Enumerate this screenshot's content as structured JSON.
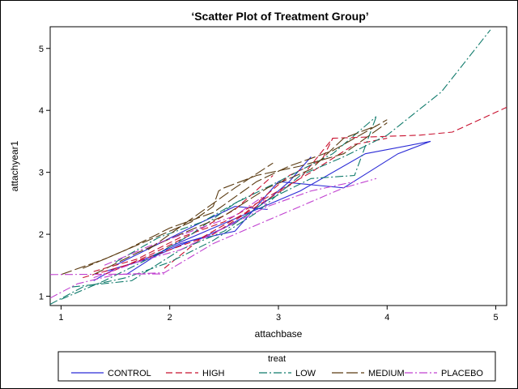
{
  "chart_data": {
    "type": "line",
    "title": "‘Scatter Plot of Treatment Group’",
    "xlabel": "attachbase",
    "ylabel": "attachyear1",
    "xlim": [
      0.9,
      5.1
    ],
    "ylim": [
      0.85,
      5.35
    ],
    "x_ticks": [
      1,
      2,
      3,
      4,
      5
    ],
    "y_ticks": [
      1,
      2,
      3,
      4,
      5
    ],
    "grid": false,
    "legend": {
      "title": "treat",
      "placement": "bottom"
    },
    "series": [
      {
        "name": "CONTROL",
        "color": "#2b2bd6",
        "dash": "solid",
        "points": [
          [
            1.3,
            1.25
          ],
          [
            1.5,
            1.45
          ],
          [
            1.7,
            1.55
          ],
          [
            1.9,
            1.7
          ],
          [
            2.1,
            1.85
          ],
          [
            2.3,
            1.95
          ],
          [
            2.5,
            2.1
          ],
          [
            2.7,
            2.3
          ],
          [
            2.9,
            2.55
          ],
          [
            3.1,
            2.85
          ],
          [
            3.3,
            3.25
          ]
        ],
        "extra": [
          [
            [
              1.4,
              1.4
            ],
            [
              1.8,
              1.6
            ],
            [
              2.2,
              1.9
            ],
            [
              2.6,
              2.05
            ],
            [
              3.0,
              2.85
            ],
            [
              3.6,
              2.75
            ],
            [
              4.1,
              3.3
            ],
            [
              4.4,
              3.5
            ]
          ],
          [
            [
              1.6,
              1.35
            ],
            [
              2.0,
              1.8
            ],
            [
              2.4,
              2.1
            ],
            [
              2.8,
              2.4
            ],
            [
              3.2,
              2.7
            ],
            [
              3.8,
              3.3
            ],
            [
              4.4,
              3.5
            ]
          ],
          [
            [
              1.5,
              1.5
            ],
            [
              1.9,
              1.85
            ],
            [
              2.3,
              2.2
            ],
            [
              2.6,
              2.45
            ],
            [
              2.9,
              2.4
            ]
          ]
        ]
      },
      {
        "name": "HIGH",
        "color": "#c8102e",
        "dash": "8,4",
        "points": [
          [
            1.2,
            1.3
          ],
          [
            1.6,
            1.5
          ],
          [
            2.0,
            1.75
          ],
          [
            2.4,
            2.0
          ],
          [
            2.8,
            2.45
          ],
          [
            3.2,
            2.9
          ],
          [
            3.5,
            3.55
          ],
          [
            4.3,
            3.6
          ],
          [
            4.6,
            3.65
          ],
          [
            5.1,
            4.05
          ]
        ],
        "extra": [
          [
            [
              1.3,
              1.4
            ],
            [
              1.7,
              1.6
            ],
            [
              2.1,
              1.95
            ],
            [
              2.5,
              2.2
            ],
            [
              2.9,
              2.6
            ],
            [
              3.3,
              3.0
            ],
            [
              3.7,
              3.45
            ],
            [
              4.0,
              3.55
            ]
          ],
          [
            [
              1.95,
              1.45
            ],
            [
              2.3,
              1.95
            ],
            [
              2.7,
              2.35
            ],
            [
              3.1,
              2.95
            ],
            [
              3.4,
              3.2
            ],
            [
              3.5,
              3.55
            ]
          ],
          [
            [
              1.4,
              1.35
            ],
            [
              1.8,
              1.65
            ],
            [
              2.2,
              2.0
            ],
            [
              2.6,
              2.4
            ],
            [
              2.95,
              2.95
            ]
          ]
        ]
      },
      {
        "name": "LOW",
        "color": "#0f7a6b",
        "dash": "10,3,2,3",
        "points": [
          [
            0.9,
            0.87
          ],
          [
            1.2,
            1.15
          ],
          [
            1.6,
            1.3
          ],
          [
            2.0,
            1.55
          ],
          [
            2.4,
            1.9
          ],
          [
            2.8,
            2.35
          ],
          [
            3.2,
            2.95
          ],
          [
            3.6,
            3.25
          ],
          [
            4.0,
            3.6
          ],
          [
            4.5,
            4.3
          ],
          [
            4.95,
            5.3
          ]
        ],
        "extra": [
          [
            [
              1.0,
              0.95
            ],
            [
              1.4,
              1.25
            ],
            [
              1.8,
              1.6
            ],
            [
              2.2,
              2.0
            ],
            [
              2.6,
              2.5
            ],
            [
              3.0,
              2.85
            ],
            [
              3.5,
              3.3
            ],
            [
              3.9,
              3.9
            ]
          ],
          [
            [
              1.1,
              1.15
            ],
            [
              1.65,
              1.25
            ],
            [
              2.1,
              1.75
            ],
            [
              2.5,
              2.05
            ],
            [
              2.9,
              2.55
            ],
            [
              3.3,
              2.9
            ],
            [
              3.7,
              2.95
            ],
            [
              3.9,
              3.9
            ]
          ],
          [
            [
              1.5,
              1.55
            ],
            [
              1.9,
              1.95
            ],
            [
              2.3,
              2.2
            ],
            [
              2.7,
              2.6
            ]
          ]
        ]
      },
      {
        "name": "MEDIUM",
        "color": "#5a3a10",
        "dash": "14,4",
        "points": [
          [
            1.0,
            1.35
          ],
          [
            1.4,
            1.6
          ],
          [
            1.8,
            1.9
          ],
          [
            2.2,
            2.2
          ],
          [
            2.4,
            2.45
          ],
          [
            2.45,
            2.7
          ],
          [
            2.5,
            2.75
          ],
          [
            2.8,
            2.95
          ],
          [
            3.2,
            3.1
          ],
          [
            3.6,
            3.3
          ],
          [
            4.0,
            3.8
          ]
        ],
        "extra": [
          [
            [
              1.2,
              1.45
            ],
            [
              1.6,
              1.75
            ],
            [
              2.0,
              2.1
            ],
            [
              2.4,
              2.35
            ],
            [
              2.8,
              2.85
            ],
            [
              3.1,
              3.1
            ],
            [
              3.5,
              3.35
            ],
            [
              4.0,
              3.85
            ]
          ],
          [
            [
              1.3,
              1.35
            ],
            [
              1.7,
              1.7
            ],
            [
              2.1,
              2.0
            ],
            [
              2.5,
              2.3
            ],
            [
              2.9,
              2.75
            ],
            [
              3.3,
              3.05
            ],
            [
              3.6,
              3.55
            ],
            [
              3.9,
              3.75
            ]
          ],
          [
            [
              1.8,
              1.75
            ],
            [
              2.2,
              2.25
            ],
            [
              2.6,
              2.75
            ],
            [
              2.95,
              3.15
            ]
          ]
        ]
      },
      {
        "name": "PLACEBO",
        "color": "#c040d0",
        "dash": "10,3,2,3",
        "points": [
          [
            0.9,
            0.97
          ],
          [
            1.15,
            1.2
          ],
          [
            1.5,
            1.35
          ],
          [
            1.95,
            1.38
          ],
          [
            2.4,
            1.85
          ],
          [
            2.8,
            2.15
          ],
          [
            3.2,
            2.45
          ],
          [
            3.6,
            2.75
          ],
          [
            3.9,
            2.9
          ]
        ],
        "extra": [
          [
            [
              0.9,
              1.35
            ],
            [
              1.95,
              1.36
            ]
          ],
          [
            [
              1.3,
              1.3
            ],
            [
              1.7,
              1.55
            ],
            [
              2.1,
              1.75
            ],
            [
              2.5,
              2.1
            ],
            [
              2.9,
              2.45
            ],
            [
              3.3,
              2.7
            ],
            [
              3.7,
              2.85
            ]
          ],
          [
            [
              1.4,
              1.5
            ],
            [
              1.8,
              1.8
            ],
            [
              2.2,
              2.05
            ],
            [
              2.6,
              2.3
            ],
            [
              2.85,
              2.6
            ],
            [
              2.9,
              2.4
            ]
          ]
        ]
      }
    ]
  },
  "legend_title": "treat"
}
